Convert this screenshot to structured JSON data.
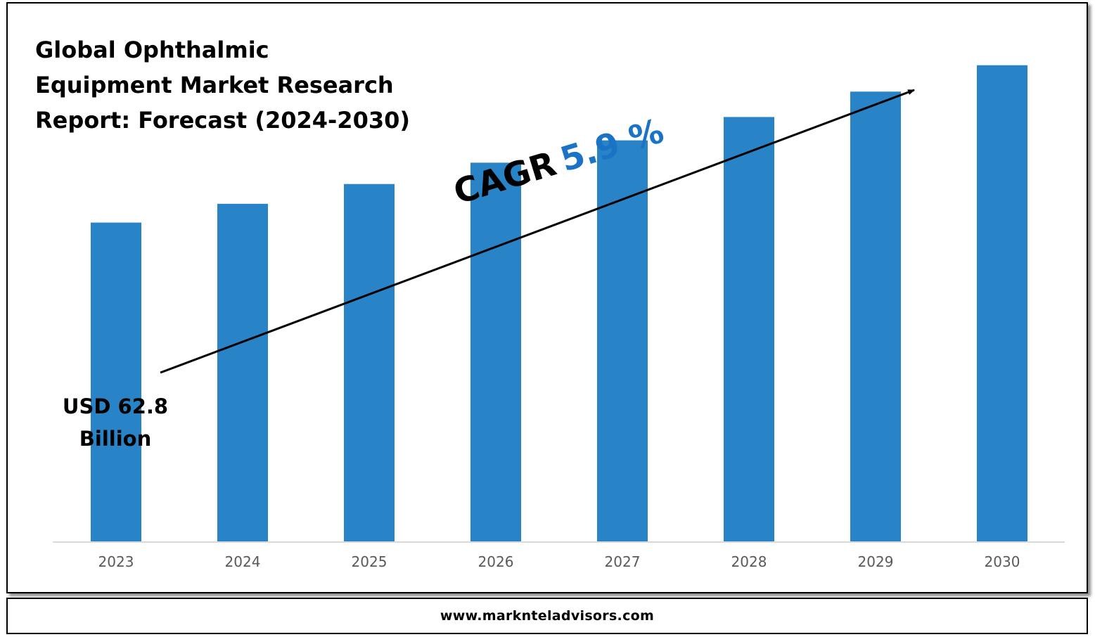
{
  "title_lines": [
    "Global Ophthalmic",
    "Equipment Market Research",
    "Report: Forecast (2024-2030)"
  ],
  "cagr": {
    "label": "CAGR",
    "value": "5.9 %"
  },
  "first_bar_label": [
    "USD 62.8",
    "Billion"
  ],
  "footer": {
    "website": "www.marknteladvisors.com"
  },
  "colors": {
    "bar": "#2983c7",
    "accent_text": "#1a73c4",
    "axis": "#d9d9d9",
    "tick_text": "#595959"
  },
  "chart_data": {
    "type": "bar",
    "title": "Global Ophthalmic Equipment Market Research Report: Forecast (2024-2030)",
    "categories": [
      "2023",
      "2024",
      "2025",
      "2026",
      "2027",
      "2028",
      "2029",
      "2030"
    ],
    "values": [
      62.8,
      66.5,
      70.4,
      74.6,
      79.0,
      83.6,
      88.6,
      93.8
    ],
    "unit": "USD Billion",
    "ylim": [
      0,
      100
    ],
    "annotations": [
      "USD 62.8 Billion",
      "CAGR 5.9 %"
    ],
    "grid": false,
    "legend": "none"
  }
}
